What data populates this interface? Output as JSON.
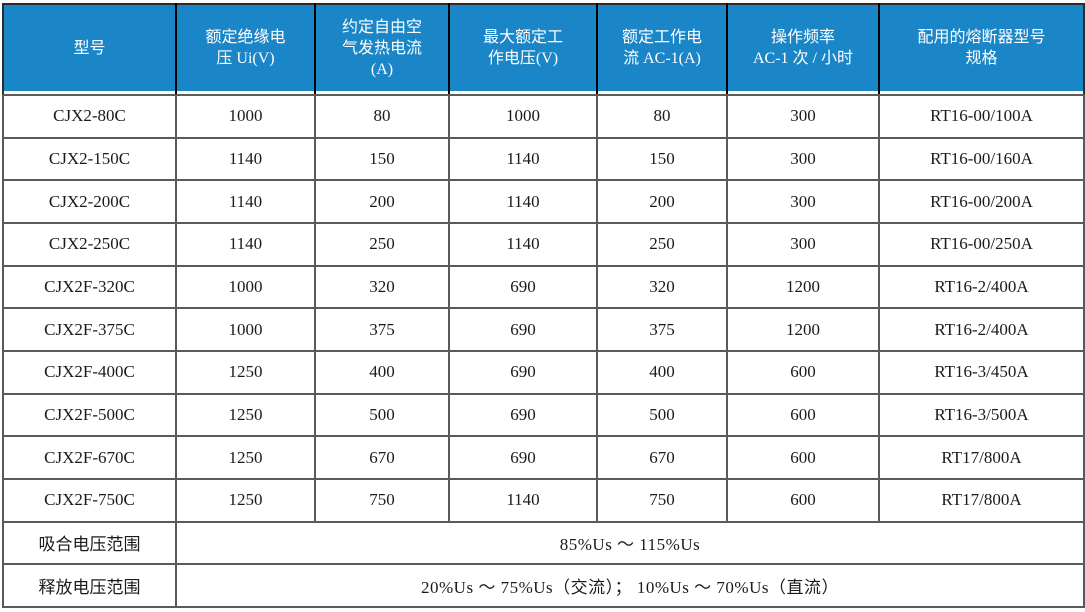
{
  "table": {
    "headers": [
      "型号",
      "额定绝缘电\n压 Ui(V)",
      "约定自由空\n气发热电流\n(A)",
      "最大额定工\n作电压(V)",
      "额定工作电\n流 AC-1(A)",
      "操作频率\nAC-1 次 / 小时",
      "配用的熔断器型号\n规格"
    ],
    "rows": [
      [
        "CJX2-80C",
        "1000",
        "80",
        "1000",
        "80",
        "300",
        "RT16-00/100A"
      ],
      [
        "CJX2-150C",
        "1140",
        "150",
        "1140",
        "150",
        "300",
        "RT16-00/160A"
      ],
      [
        "CJX2-200C",
        "1140",
        "200",
        "1140",
        "200",
        "300",
        "RT16-00/200A"
      ],
      [
        "CJX2-250C",
        "1140",
        "250",
        "1140",
        "250",
        "300",
        "RT16-00/250A"
      ],
      [
        "CJX2F-320C",
        "1000",
        "320",
        "690",
        "320",
        "1200",
        "RT16-2/400A"
      ],
      [
        "CJX2F-375C",
        "1000",
        "375",
        "690",
        "375",
        "1200",
        "RT16-2/400A"
      ],
      [
        "CJX2F-400C",
        "1250",
        "400",
        "690",
        "400",
        "600",
        "RT16-3/450A"
      ],
      [
        "CJX2F-500C",
        "1250",
        "500",
        "690",
        "500",
        "600",
        "RT16-3/500A"
      ],
      [
        "CJX2F-670C",
        "1250",
        "670",
        "690",
        "670",
        "600",
        "RT17/800A"
      ],
      [
        "CJX2F-750C",
        "1250",
        "750",
        "1140",
        "750",
        "600",
        "RT17/800A"
      ]
    ],
    "footer_rows": [
      {
        "label": "吸合电压范围",
        "value": "85%Us ～ 115%Us"
      },
      {
        "label": "释放电压范围",
        "value": "20%Us ～ 75%Us（交流）； 10%Us ～ 70%Us（直流）"
      }
    ],
    "colors": {
      "header_bg": "#1a86c8",
      "header_text": "#ffffff",
      "grid": "#5a5a5a",
      "outer_border": "#2b2b2b",
      "header_divider": "#000000",
      "body_text": "#1a1a1a"
    }
  },
  "chart_data": {
    "type": "table",
    "title": "",
    "columns": [
      "型号",
      "额定绝缘电压 Ui(V)",
      "约定自由空气发热电流(A)",
      "最大额定工作电压(V)",
      "额定工作电流 AC-1(A)",
      "操作频率 AC-1 次 / 小时",
      "配用的熔断器型号规格"
    ],
    "rows": [
      [
        "CJX2-80C",
        1000,
        80,
        1000,
        80,
        300,
        "RT16-00/100A"
      ],
      [
        "CJX2-150C",
        1140,
        150,
        1140,
        150,
        300,
        "RT16-00/160A"
      ],
      [
        "CJX2-200C",
        1140,
        200,
        1140,
        200,
        300,
        "RT16-00/200A"
      ],
      [
        "CJX2-250C",
        1140,
        250,
        1140,
        250,
        300,
        "RT16-00/250A"
      ],
      [
        "CJX2F-320C",
        1000,
        320,
        690,
        320,
        1200,
        "RT16-2/400A"
      ],
      [
        "CJX2F-375C",
        1000,
        375,
        690,
        375,
        1200,
        "RT16-2/400A"
      ],
      [
        "CJX2F-400C",
        1250,
        400,
        690,
        400,
        600,
        "RT16-3/450A"
      ],
      [
        "CJX2F-500C",
        1250,
        500,
        690,
        500,
        600,
        "RT16-3/500A"
      ],
      [
        "CJX2F-670C",
        1250,
        670,
        690,
        670,
        600,
        "RT17/800A"
      ],
      [
        "CJX2F-750C",
        1250,
        750,
        1140,
        750,
        600,
        "RT17/800A"
      ],
      [
        "吸合电压范围",
        "85%Us ～ 115%Us"
      ],
      [
        "释放电压范围",
        "20%Us ～ 75%Us（交流）； 10%Us ～ 70%Us（直流）"
      ]
    ]
  }
}
